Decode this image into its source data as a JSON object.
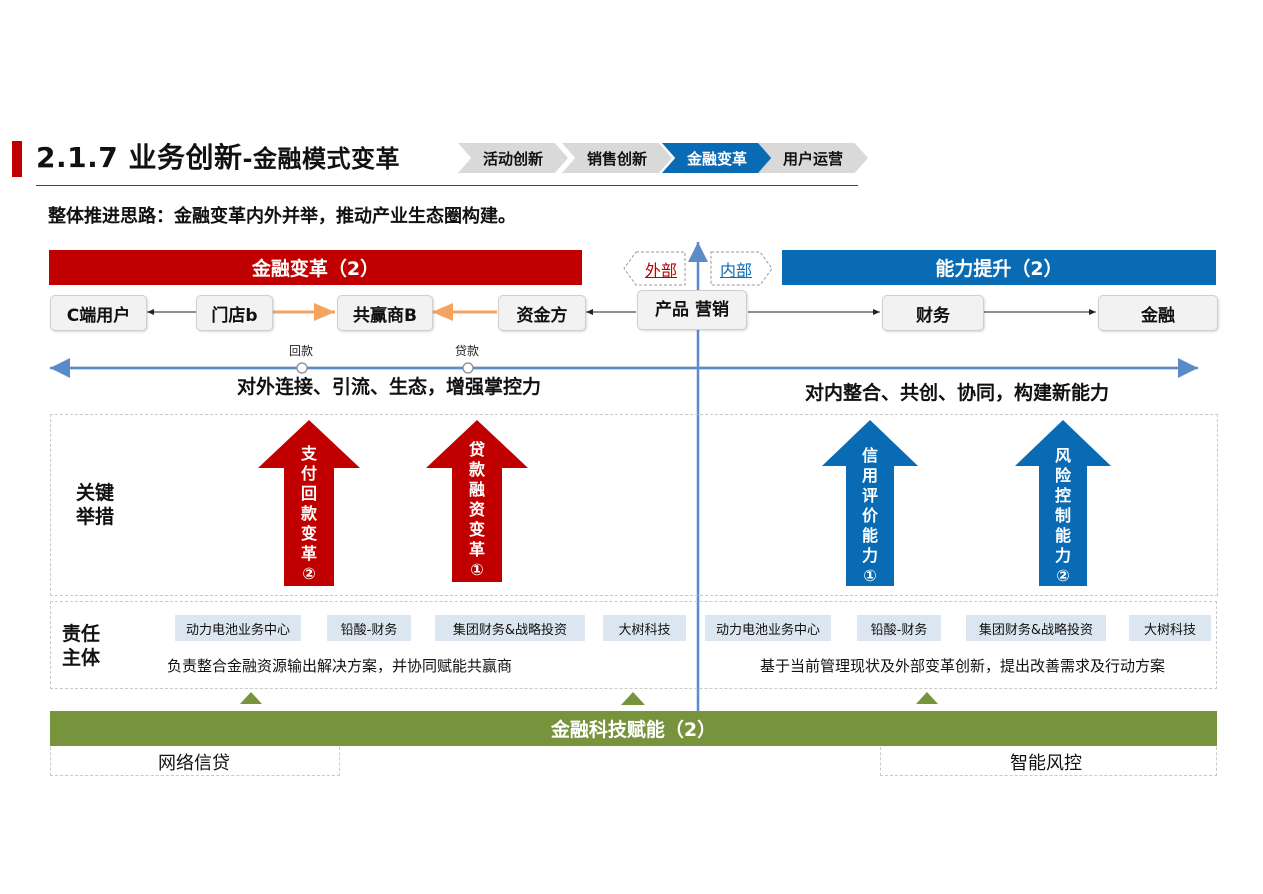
{
  "header": {
    "title_main": "2.1.7 业务创新",
    "title_sub": "-金融模式变革",
    "steps": [
      "活动创新",
      "销售创新",
      "金融变革",
      "用户运营"
    ],
    "active_step": "金融变革"
  },
  "subtitle": "整体推进思路：金融变革内外并举，推动产业生态圈构建。",
  "bands": {
    "left": "金融变革（2）",
    "right": "能力提升（2）",
    "bottom": "金融科技赋能（2）"
  },
  "tags": {
    "external": "外部",
    "internal": "内部"
  },
  "nodes": {
    "c_user": "C端用户",
    "store": "门店b",
    "partner": "共赢商B",
    "funder": "资金方",
    "product": "产品 营销",
    "finance": "财务",
    "jinrong": "金融"
  },
  "flow_labels": {
    "repay": "回款",
    "loan": "贷款"
  },
  "axis_text": {
    "left": "对外连接、引流、生态，增强掌控力",
    "right": "对内整合、共创、协同，构建新能力"
  },
  "row_labels": {
    "key_measures": [
      "关键",
      "举措"
    ],
    "responsible": [
      "责任",
      "主体"
    ]
  },
  "arrows": [
    {
      "text": [
        "支",
        "付",
        "回",
        "款",
        "变",
        "革",
        "②"
      ],
      "color": "#c00000"
    },
    {
      "text": [
        "贷",
        "款",
        "融",
        "资",
        "变",
        "革",
        "①"
      ],
      "color": "#c00000"
    },
    {
      "text": [
        "信",
        "用",
        "评",
        "价",
        "能",
        "力",
        "①"
      ],
      "color": "#0a6bb5"
    },
    {
      "text": [
        "风",
        "险",
        "控",
        "制",
        "能",
        "力",
        "②"
      ],
      "color": "#0a6bb5"
    }
  ],
  "chips_left": [
    "动力电池业务中心",
    "铅酸-财务",
    "集团财务&战略投资",
    "大树科技"
  ],
  "chips_right": [
    "动力电池业务中心",
    "铅酸-财务",
    "集团财务&战略投资",
    "大树科技"
  ],
  "desc": {
    "left": "负责整合金融资源输出解决方案，并协同赋能共赢商",
    "right": "基于当前管理现状及外部变革创新，提出改善需求及行动方案"
  },
  "bottom": {
    "left": "网络信贷",
    "right": "智能风控"
  },
  "colors": {
    "red": "#c00000",
    "blue": "#0a6bb5",
    "green": "#77933c",
    "orange": "#f4a460"
  }
}
